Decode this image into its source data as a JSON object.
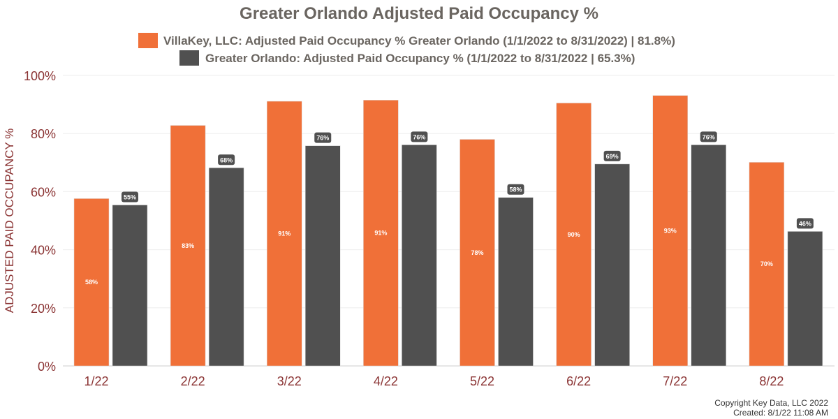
{
  "chart_data": {
    "type": "bar",
    "title": "Greater Orlando Adjusted Paid Occupancy %",
    "xlabel": "",
    "ylabel": "ADJUSTED PAID OCCUPANCY %",
    "ylim": [
      0,
      100
    ],
    "yticks": [
      "0%",
      "20%",
      "40%",
      "60%",
      "80%",
      "100%"
    ],
    "grid": true,
    "legend_position": "top-center",
    "categories": [
      "1/22",
      "2/22",
      "3/22",
      "4/22",
      "5/22",
      "6/22",
      "7/22",
      "8/22"
    ],
    "series": [
      {
        "name": "VillaKey, LLC: Adjusted Paid Occupancy % Greater Orlando (1/1/2022 to 8/31/2022) | 81.8%)",
        "color": "#f07038",
        "values": [
          57.6,
          82.8,
          91.1,
          91.5,
          78.0,
          90.5,
          93.1,
          70.1
        ],
        "labels": [
          "58%",
          "83%",
          "91%",
          "91%",
          "78%",
          "90%",
          "93%",
          "70%"
        ]
      },
      {
        "name": "Greater Orlando: Adjusted Paid Occupancy % (1/1/2022 to 8/31/2022 | 65.3%)",
        "color": "#505050",
        "values": [
          55.4,
          68.2,
          75.8,
          76.1,
          58.0,
          69.5,
          76.1,
          46.3
        ],
        "labels": [
          "55%",
          "68%",
          "76%",
          "76%",
          "58%",
          "69%",
          "76%",
          "46%"
        ]
      }
    ]
  },
  "footer": {
    "copyright": "Copyright Key Data, LLC 2022",
    "created": "Created: 8/1/22 11:08 AM"
  }
}
